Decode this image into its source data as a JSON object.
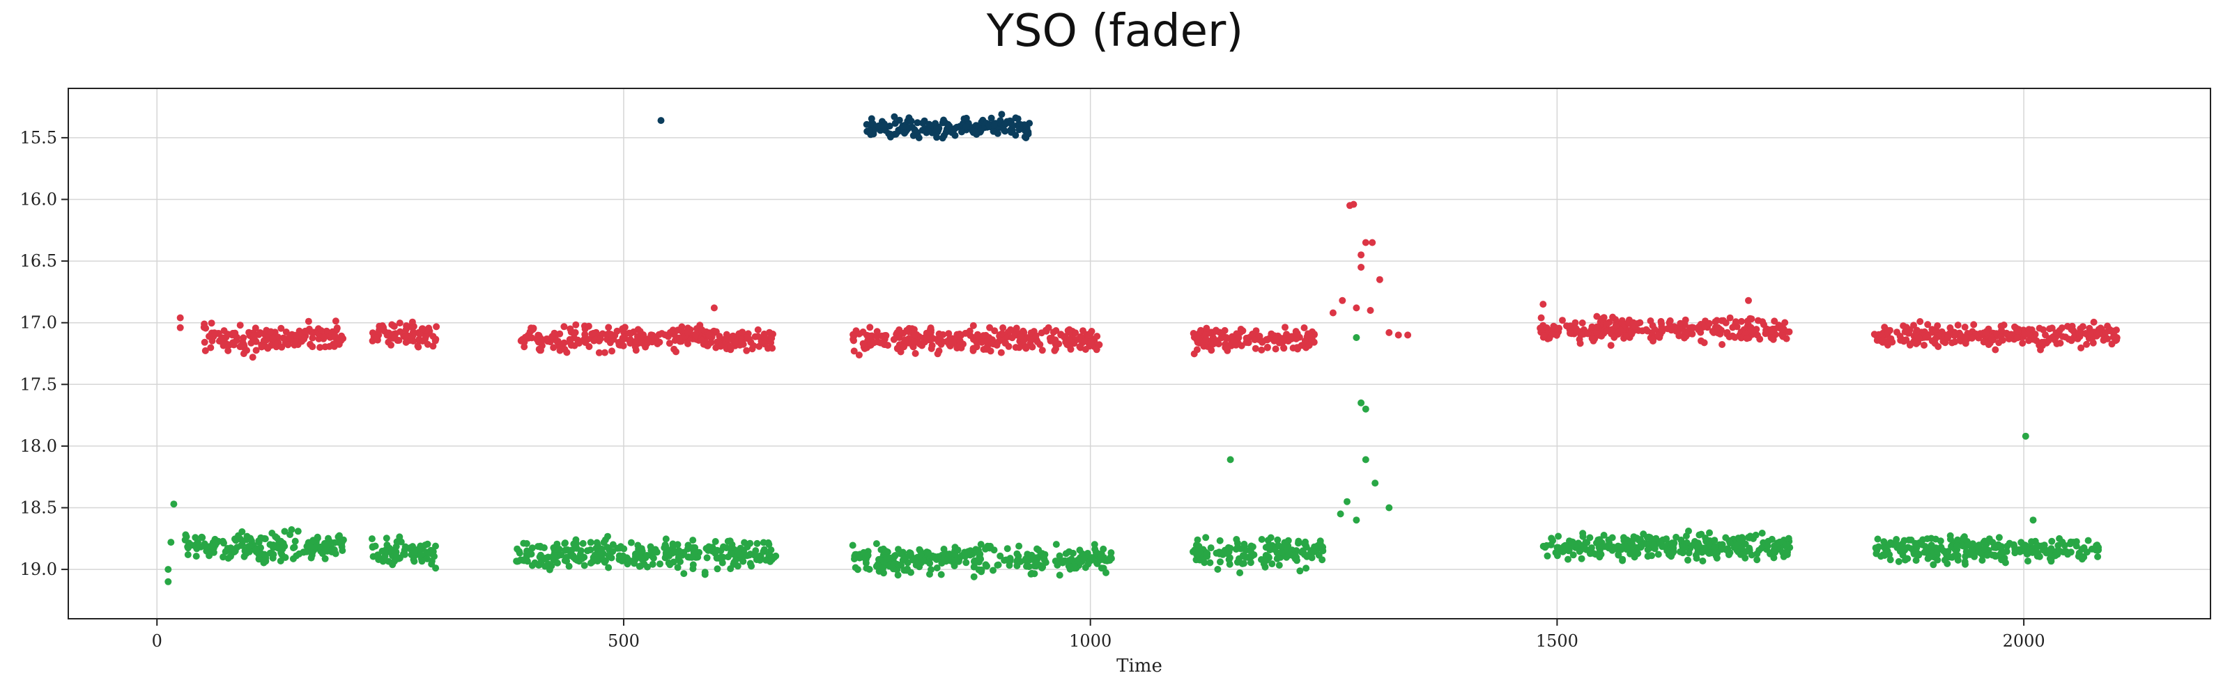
{
  "chart_data": {
    "type": "scatter",
    "title": "YSO (fader)",
    "xlabel": "Time",
    "ylabel": "",
    "xlim": [
      -95,
      2200
    ],
    "ylim": [
      19.4,
      15.1
    ],
    "y_inverted": true,
    "grid": true,
    "xticks": [
      0,
      500,
      1000,
      1500,
      2000
    ],
    "yticks": [
      15.5,
      16.0,
      16.5,
      17.0,
      17.5,
      18.0,
      18.5,
      19.0
    ],
    "series": [
      {
        "color": "#0b3d5c",
        "clusters": [
          {
            "x_range": [
              760,
              935
            ],
            "center": 15.42,
            "scatter": 0.05
          }
        ],
        "points": [
          [
            540,
            15.36
          ],
          [
            790,
            15.33
          ],
          [
            905,
            15.31
          ]
        ]
      },
      {
        "color": "#dc3545",
        "clusters": [
          {
            "x_range": [
              50,
              200
            ],
            "center": 17.13,
            "scatter": 0.08
          },
          {
            "x_range": [
              230,
              300
            ],
            "center": 17.1,
            "scatter": 0.07
          },
          {
            "x_range": [
              390,
              600
            ],
            "center": 17.12,
            "scatter": 0.07
          },
          {
            "x_range": [
              600,
              660
            ],
            "center": 17.14,
            "scatter": 0.05
          },
          {
            "x_range": [
              745,
              1010
            ],
            "center": 17.14,
            "scatter": 0.07
          },
          {
            "x_range": [
              1110,
              1240
            ],
            "center": 17.14,
            "scatter": 0.07
          },
          {
            "x_range": [
              1480,
              1750
            ],
            "center": 17.06,
            "scatter": 0.06
          },
          {
            "x_range": [
              1840,
              2100
            ],
            "center": 17.1,
            "scatter": 0.06
          }
        ],
        "points": [
          [
            25,
            16.96
          ],
          [
            25,
            17.04
          ],
          [
            1278,
            16.05
          ],
          [
            1282,
            16.04
          ],
          [
            1290,
            16.45
          ],
          [
            1295,
            16.35
          ],
          [
            1302,
            16.35
          ],
          [
            1290,
            16.55
          ],
          [
            1310,
            16.65
          ],
          [
            1270,
            16.82
          ],
          [
            1285,
            16.88
          ],
          [
            1300,
            16.9
          ],
          [
            1260,
            16.92
          ],
          [
            1320,
            17.08
          ],
          [
            1330,
            17.1
          ],
          [
            1340,
            17.1
          ],
          [
            1485,
            16.85
          ],
          [
            1705,
            16.82
          ],
          [
            597,
            16.88
          ]
        ]
      },
      {
        "color": "#28a745",
        "clusters": [
          {
            "x_range": [
              30,
              200
            ],
            "center": 18.82,
            "scatter": 0.08
          },
          {
            "x_range": [
              230,
              300
            ],
            "center": 18.86,
            "scatter": 0.08
          },
          {
            "x_range": [
              385,
              665
            ],
            "center": 18.88,
            "scatter": 0.08
          },
          {
            "x_range": [
              745,
              1025
            ],
            "center": 18.92,
            "scatter": 0.08
          },
          {
            "x_range": [
              1110,
              1250
            ],
            "center": 18.86,
            "scatter": 0.08
          },
          {
            "x_range": [
              1480,
              1750
            ],
            "center": 18.82,
            "scatter": 0.07
          },
          {
            "x_range": [
              1840,
              2080
            ],
            "center": 18.84,
            "scatter": 0.07
          }
        ],
        "points": [
          [
            15,
            18.78
          ],
          [
            12,
            19.0
          ],
          [
            12,
            19.1
          ],
          [
            18,
            18.47
          ],
          [
            1150,
            18.11
          ],
          [
            1285,
            17.12
          ],
          [
            1290,
            17.65
          ],
          [
            1295,
            17.7
          ],
          [
            1295,
            18.11
          ],
          [
            1305,
            18.3
          ],
          [
            1275,
            18.45
          ],
          [
            1268,
            18.55
          ],
          [
            1320,
            18.5
          ],
          [
            1285,
            18.6
          ],
          [
            2002,
            17.92
          ],
          [
            2010,
            18.6
          ]
        ]
      }
    ]
  }
}
